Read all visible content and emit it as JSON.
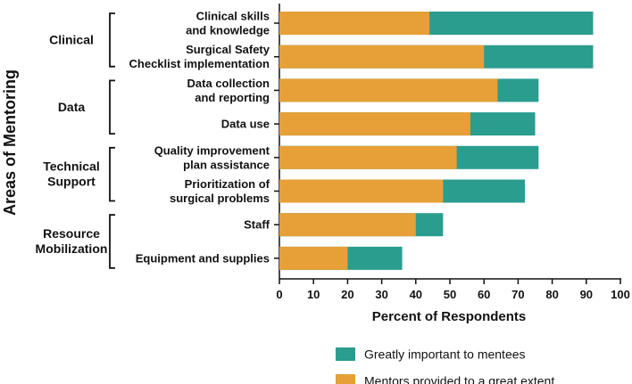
{
  "chart_data": {
    "type": "bar",
    "orientation": "horizontal",
    "stacked_overlay": true,
    "title": "",
    "xlabel": "Percent of Respondents",
    "ylabel": "Areas of Mentoring",
    "xlim": [
      0,
      100
    ],
    "xticks": [
      0,
      10,
      20,
      30,
      40,
      50,
      60,
      70,
      80,
      90,
      100
    ],
    "grid": false,
    "legend_position": "bottom",
    "categories": [
      [
        "Clinical skills",
        "and knowledge"
      ],
      [
        "Surgical Safety",
        "Checklist implementation"
      ],
      [
        "Data collection",
        "and reporting"
      ],
      [
        "Data use"
      ],
      [
        "Quality improvement",
        "plan assistance"
      ],
      [
        "Prioritization of",
        "surgical problems"
      ],
      [
        "Staff"
      ],
      [
        "Equipment and supplies"
      ]
    ],
    "groups": [
      {
        "label": [
          "Clinical"
        ],
        "start": 0,
        "end": 1
      },
      {
        "label": [
          "Data"
        ],
        "start": 2,
        "end": 3
      },
      {
        "label": [
          "Technical",
          "Support"
        ],
        "start": 4,
        "end": 5
      },
      {
        "label": [
          "Resource",
          "Mobilization"
        ],
        "start": 6,
        "end": 7
      }
    ],
    "series": [
      {
        "name": "Greatly important to mentees",
        "color": "#2a9d8f",
        "values": [
          92,
          92,
          76,
          75,
          76,
          72,
          48,
          36
        ]
      },
      {
        "name": "Mentors provided to a great extent",
        "color": "#e6a037",
        "values": [
          44,
          60,
          64,
          56,
          52,
          48,
          40,
          20
        ]
      }
    ],
    "legend_order": [
      0,
      1
    ]
  }
}
